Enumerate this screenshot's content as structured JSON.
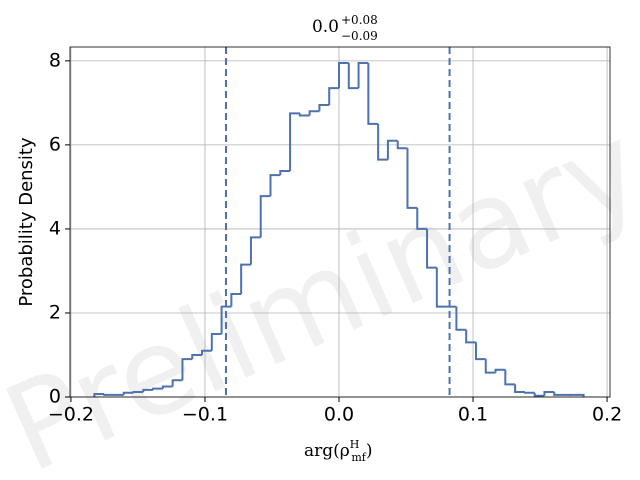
{
  "chart_data": {
    "type": "histogram",
    "title": {
      "base": "0.0",
      "upper": "+0.08",
      "lower": "−0.09"
    },
    "xlabel": {
      "pre": "arg(ρ",
      "sup": "H",
      "sub": "mf",
      "post": ")"
    },
    "ylabel": "Probability Density",
    "watermark": "Preliminary",
    "bins": [
      -0.1825,
      -0.1752,
      -0.1679,
      -0.1606,
      -0.1533,
      -0.146,
      -0.1387,
      -0.1314,
      -0.1241,
      -0.1168,
      -0.1095,
      -0.1022,
      -0.0949,
      -0.0876,
      -0.0803,
      -0.073,
      -0.0657,
      -0.0584,
      -0.0511,
      -0.0438,
      -0.0365,
      -0.0292,
      -0.0219,
      -0.0146,
      -0.0073,
      0,
      0.0073,
      0.0146,
      0.0219,
      0.0292,
      0.0365,
      0.0438,
      0.0511,
      0.0584,
      0.0657,
      0.073,
      0.0803,
      0.0876,
      0.0949,
      0.1022,
      0.1095,
      0.1168,
      0.1241,
      0.1314,
      0.1387,
      0.146,
      0.1533,
      0.1606,
      0.1679,
      0.1752,
      0.1825
    ],
    "values": [
      0.07,
      0.05,
      0.05,
      0.1,
      0.12,
      0.17,
      0.2,
      0.25,
      0.4,
      0.9,
      1.0,
      1.1,
      1.5,
      2.15,
      2.45,
      3.15,
      3.8,
      4.78,
      5.28,
      5.38,
      6.75,
      6.7,
      6.8,
      6.95,
      7.35,
      7.95,
      7.35,
      7.95,
      6.5,
      5.65,
      6.1,
      5.92,
      4.5,
      4.0,
      3.08,
      2.15,
      2.15,
      1.6,
      1.3,
      0.9,
      0.58,
      0.65,
      0.3,
      0.12,
      0.1,
      0.03,
      0.12,
      0.05,
      0.05,
      0.05
    ],
    "color": "#4c72b0",
    "vlines": [
      -0.0843,
      0.0825
    ],
    "xlim": [
      -0.2007,
      0.2022
    ],
    "ylim": [
      0,
      8.33
    ],
    "xticks": [
      {
        "value": -0.2,
        "label": "−0.2"
      },
      {
        "value": -0.1,
        "label": "−0.1"
      },
      {
        "value": 0.0,
        "label": "0.0"
      },
      {
        "value": 0.1,
        "label": "0.1"
      },
      {
        "value": 0.2,
        "label": "0.2"
      }
    ],
    "yticks": [
      0,
      2,
      4,
      6,
      8
    ],
    "grid": true
  }
}
